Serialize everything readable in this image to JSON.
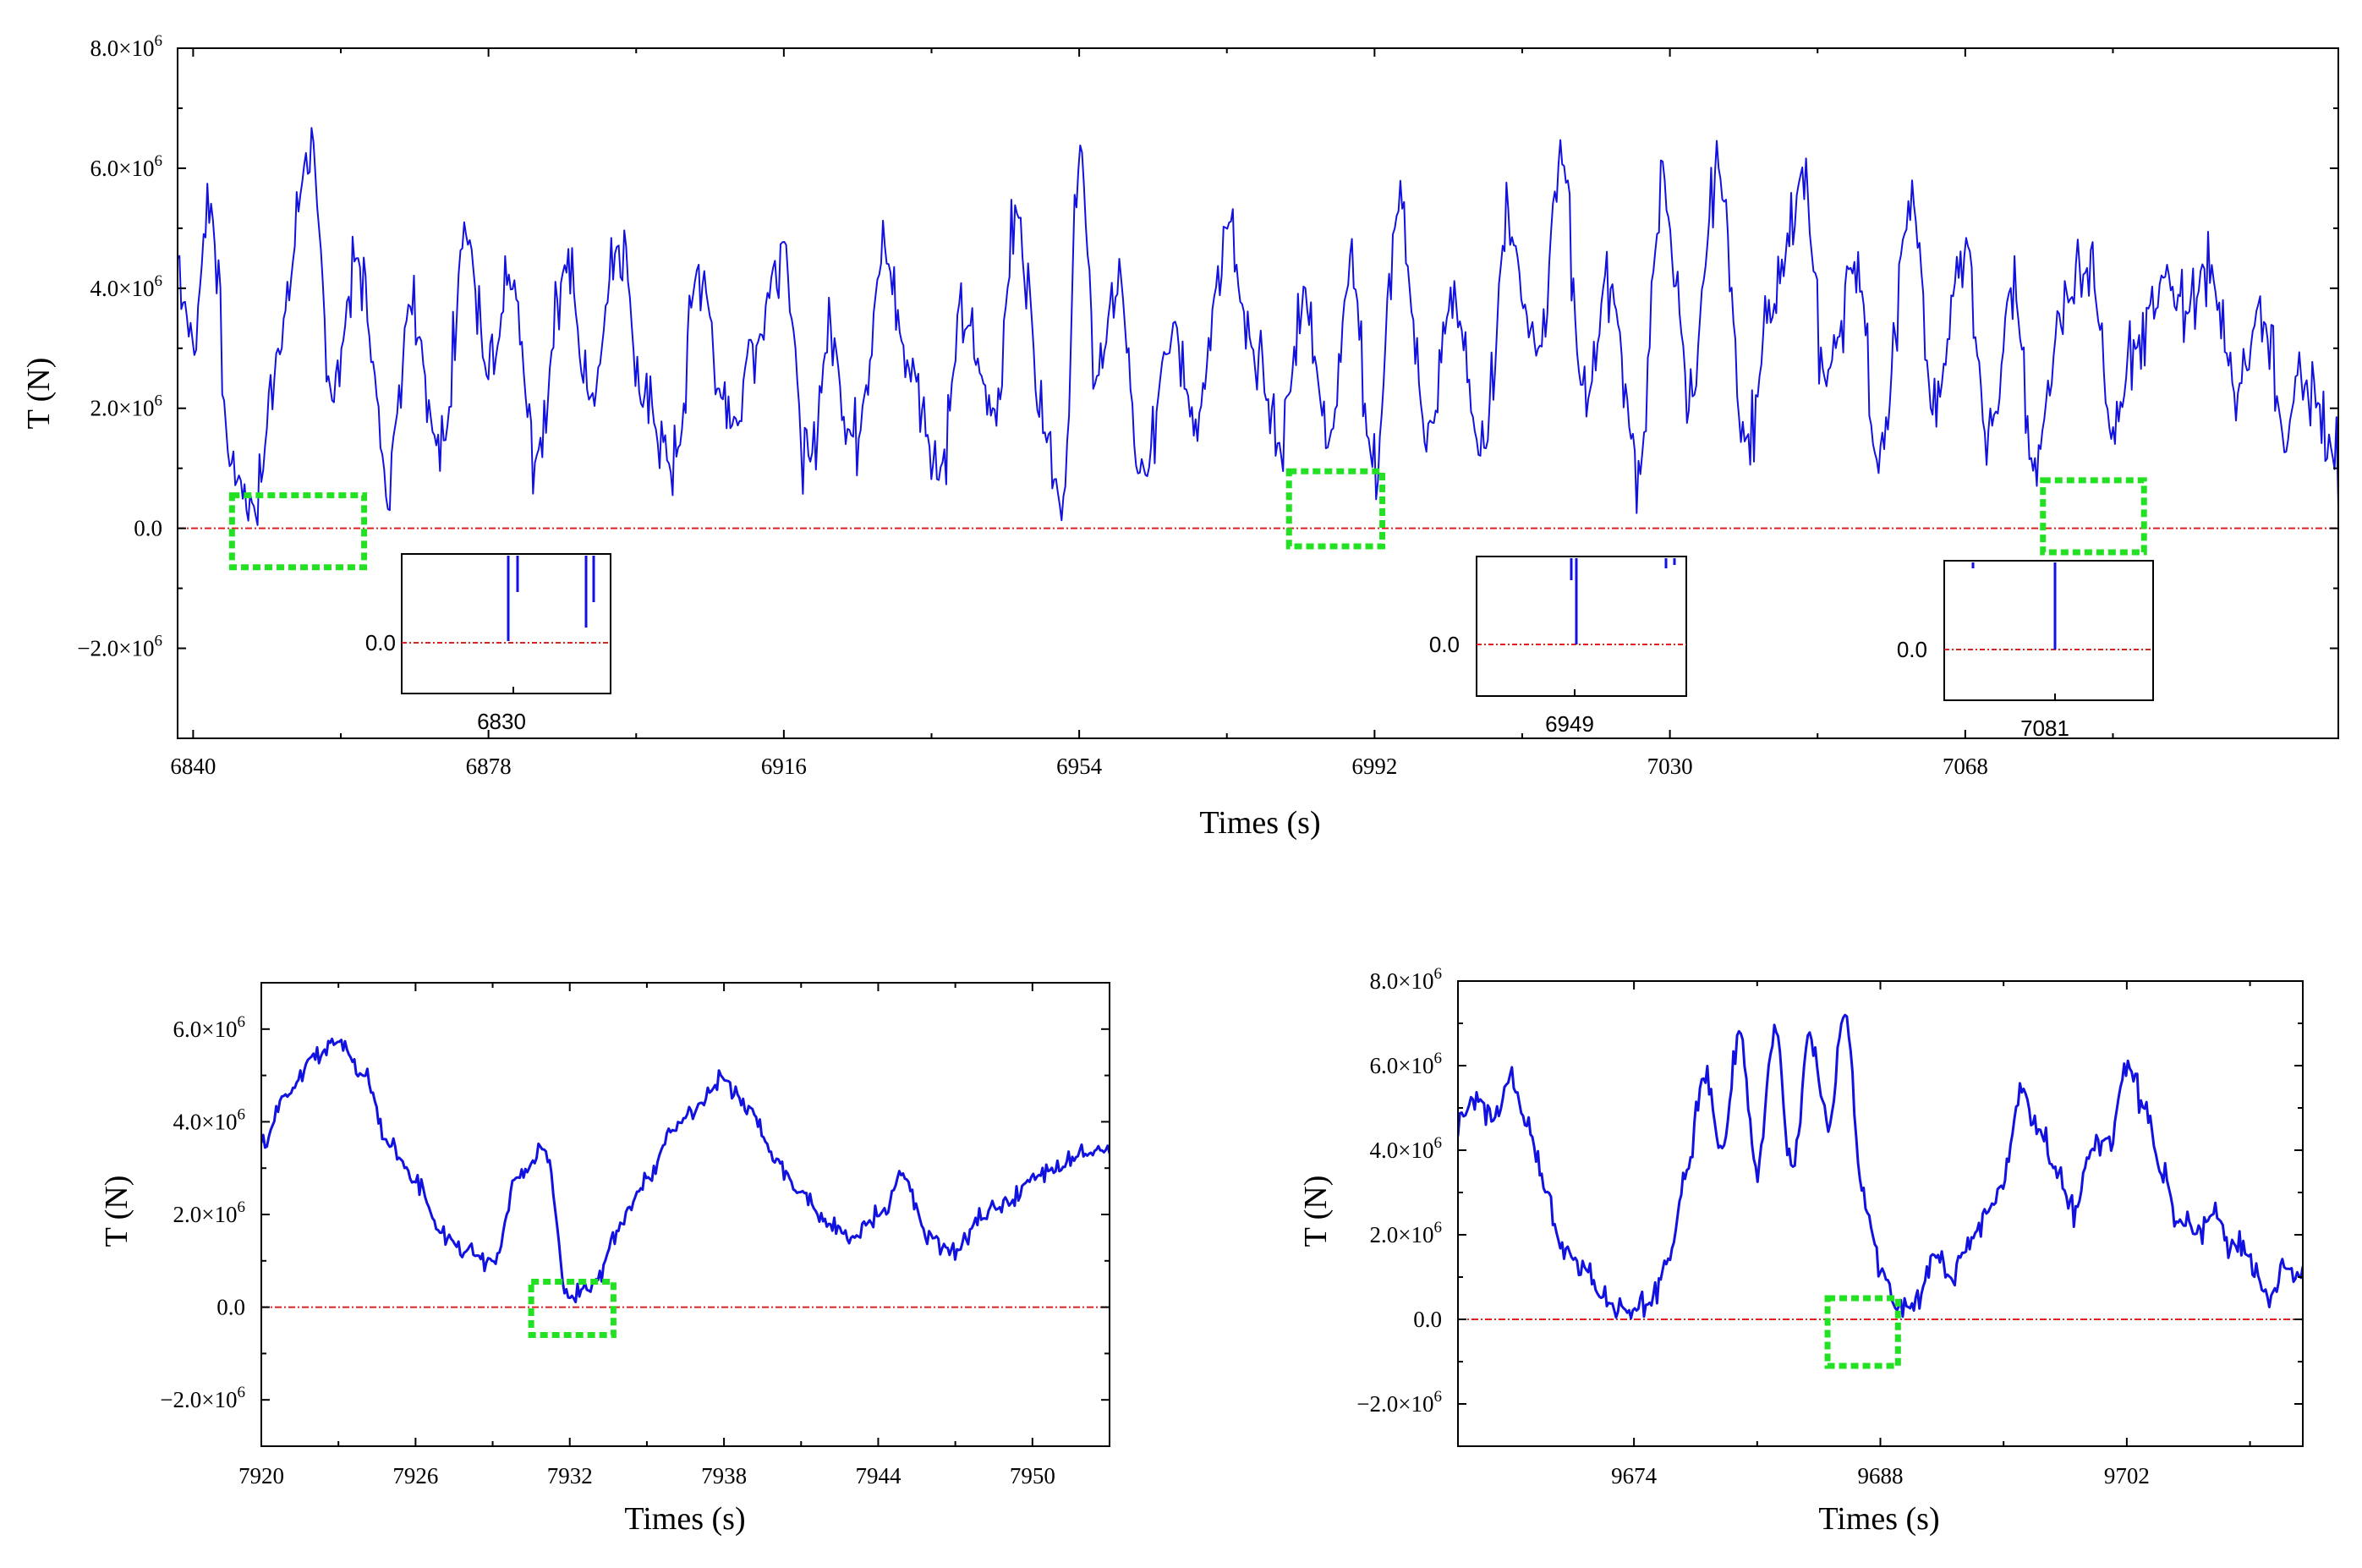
{
  "chart_data": [
    {
      "id": "top",
      "type": "line",
      "xlabel": "Times (s)",
      "ylabel": "T (N)",
      "xlim": [
        6838,
        7116
      ],
      "ylim": [
        -3500000.0,
        8000000.0
      ],
      "xticks": [
        6840,
        6878,
        6916,
        6954,
        6992,
        7030,
        7068
      ],
      "xtick_labels": [
        "6840",
        "6878",
        "6916",
        "6954",
        "6992",
        "7030",
        "7068"
      ],
      "yticks": [
        -2000000.0,
        0,
        2000000.0,
        4000000.0,
        6000000.0,
        8000000.0
      ],
      "ytick_labels": [
        {
          "mant": "−2.0×10",
          "exp": "6"
        },
        {
          "mant": "0.0",
          "exp": ""
        },
        {
          "mant": "2.0×10",
          "exp": "6"
        },
        {
          "mant": "4.0×10",
          "exp": "6"
        },
        {
          "mant": "6.0×10",
          "exp": "6"
        },
        {
          "mant": "8.0×10",
          "exp": "6"
        }
      ],
      "reference_line": {
        "y": 0,
        "color": "#e02020"
      },
      "series_color": "#1212e0",
      "series": [
        {
          "x": [
            6838,
            6840,
            6842,
            6845,
            6848,
            6851,
            6855,
            6858,
            6861,
            6865,
            6868,
            6872,
            6875,
            6878,
            6881,
            6884,
            6888,
            6891,
            6895,
            6898,
            6902,
            6905,
            6909,
            6912,
            6916,
            6919,
            6922,
            6925,
            6929,
            6932,
            6936,
            6939,
            6943,
            6946,
            6950,
            6952,
            6954,
            6956,
            6959,
            6962,
            6966,
            6969,
            6973,
            6976,
            6980,
            6983,
            6986,
            6989,
            6992,
            6995,
            6999,
            7002,
            7006,
            7009,
            7013,
            7016,
            7019,
            7022,
            7026,
            7029,
            7033,
            7036,
            7040,
            7043,
            7047,
            7050,
            7054,
            7057,
            7061,
            7064,
            7068,
            7071,
            7074,
            7077,
            7080,
            7084,
            7087,
            7090,
            7093,
            7096,
            7099,
            7103,
            7106,
            7109,
            7112,
            7116
          ],
          "y": [
            4500000.0,
            3000000.0,
            5500000.0,
            1000000.0,
            400000.0,
            3000000.0,
            6300000.0,
            2200000.0,
            4500000.0,
            1000000.0,
            3800000.0,
            1200000.0,
            5000000.0,
            2500000.0,
            4000000.0,
            1200000.0,
            4400000.0,
            2200000.0,
            4800000.0,
            2000000.0,
            1000000.0,
            4300000.0,
            1700000.0,
            3000000.0,
            4800000.0,
            1000000.0,
            3200000.0,
            1500000.0,
            4500000.0,
            2800000.0,
            1000000.0,
            3400000.0,
            2000000.0,
            5200000.0,
            1500000.0,
            200000.0,
            6600000.0,
            2500000.0,
            4200000.0,
            600000.0,
            3500000.0,
            1800000.0,
            5000000.0,
            3000000.0,
            1400000.0,
            4000000.0,
            1500000.0,
            4300000.0,
            1000000.0,
            5200000.0,
            1500000.0,
            3800000.0,
            1200000.0,
            5000000.0,
            3000000.0,
            6200000.0,
            2000000.0,
            4200000.0,
            1000000.0,
            5500000.0,
            2200000.0,
            6000000.0,
            1500000.0,
            3500000.0,
            5800000.0,
            2500000.0,
            4500000.0,
            1000000.0,
            5500000.0,
            2000000.0,
            4800000.0,
            1600000.0,
            4000000.0,
            900000.0,
            3600000.0,
            4300000.0,
            1500000.0,
            3000000.0,
            4200000.0,
            3500000.0,
            4400000.0,
            2400000.0,
            3600000.0,
            1800000.0,
            2400000.0,
            1200000.0
          ]
        }
      ],
      "highlight_boxes": [
        {
          "x0": 6845,
          "x1": 6862,
          "y0": -650000.0,
          "y1": 550000.0
        },
        {
          "x0": 6981,
          "x1": 6993,
          "y0": -300000.0,
          "y1": 950000.0
        },
        {
          "x0": 7078,
          "x1": 7091,
          "y0": -400000.0,
          "y1": 800000.0
        }
      ],
      "insets": [
        {
          "label": "6830",
          "zero_label": "0.0"
        },
        {
          "label": "6949",
          "zero_label": "0.0"
        },
        {
          "label": "7081",
          "zero_label": "0.0"
        }
      ]
    },
    {
      "id": "bottom-left",
      "type": "line",
      "xlabel": "Times (s)",
      "ylabel": "T (N)",
      "xlim": [
        7920,
        7953
      ],
      "ylim": [
        -3000000.0,
        7000000.0
      ],
      "xticks": [
        7920,
        7926,
        7932,
        7938,
        7944,
        7950
      ],
      "xtick_labels": [
        "7920",
        "7926",
        "7932",
        "7938",
        "7944",
        "7950"
      ],
      "yticks": [
        -2000000.0,
        0,
        2000000.0,
        4000000.0,
        6000000.0
      ],
      "ytick_labels": [
        {
          "mant": "−2.0×10",
          "exp": "6"
        },
        {
          "mant": "0.0",
          "exp": ""
        },
        {
          "mant": "2.0×10",
          "exp": "6"
        },
        {
          "mant": "4.0×10",
          "exp": "6"
        },
        {
          "mant": "6.0×10",
          "exp": "6"
        }
      ],
      "reference_line": {
        "y": 0,
        "color": "#e02020"
      },
      "series_color": "#1212e0",
      "series": [
        {
          "x": [
            7920,
            7921,
            7922,
            7923,
            7924,
            7925,
            7926,
            7927,
            7928,
            7929,
            7930,
            7931,
            7932,
            7933,
            7934,
            7935,
            7936,
            7937,
            7938,
            7939,
            7940,
            7941,
            7942,
            7943,
            7944,
            7945,
            7946,
            7947,
            7948,
            7949,
            7950,
            7951,
            7952,
            7953
          ],
          "y": [
            3500000.0,
            4600000.0,
            5400000.0,
            5700000.0,
            5000000.0,
            3500000.0,
            2700000.0,
            1600000.0,
            1200000.0,
            1000000.0,
            2800000.0,
            3400000.0,
            200000.0,
            600000.0,
            1800000.0,
            2800000.0,
            3800000.0,
            4400000.0,
            4900000.0,
            4300000.0,
            3200000.0,
            2500000.0,
            1800000.0,
            1500000.0,
            2000000.0,
            2800000.0,
            1500000.0,
            1200000.0,
            1900000.0,
            2200000.0,
            2800000.0,
            3000000.0,
            3300000.0,
            3400000.0
          ]
        }
      ],
      "highlight_boxes": [
        {
          "x0": 7930.5,
          "x1": 7933.7,
          "y0": -600000.0,
          "y1": 550000.0
        }
      ]
    },
    {
      "id": "bottom-right",
      "type": "line",
      "xlabel": "Times (s)",
      "ylabel": "T (N)",
      "xlim": [
        9664,
        9712
      ],
      "ylim": [
        -3000000.0,
        8000000.0
      ],
      "xticks": [
        9674,
        9688,
        9702
      ],
      "xtick_labels": [
        "9674",
        "9688",
        "9702"
      ],
      "yticks": [
        -2000000.0,
        0,
        2000000.0,
        4000000.0,
        6000000.0,
        8000000.0
      ],
      "ytick_labels": [
        {
          "mant": "−2.0×10",
          "exp": "6"
        },
        {
          "mant": "0.0",
          "exp": ""
        },
        {
          "mant": "2.0×10",
          "exp": "6"
        },
        {
          "mant": "4.0×10",
          "exp": "6"
        },
        {
          "mant": "6.0×10",
          "exp": "6"
        },
        {
          "mant": "8.0×10",
          "exp": "6"
        }
      ],
      "reference_line": {
        "y": 0,
        "color": "#e02020"
      },
      "series_color": "#1212e0",
      "series": [
        {
          "x": [
            9664,
            9665,
            9666,
            9667,
            9668,
            9669,
            9670,
            9671,
            9672,
            9673,
            9674,
            9675,
            9676,
            9677,
            9678,
            9679,
            9680,
            9681,
            9682,
            9683,
            9684,
            9685,
            9686,
            9687,
            9688,
            9689,
            9690,
            9691,
            9692,
            9693,
            9694,
            9695,
            9696,
            9697,
            9698,
            9699,
            9700,
            9701,
            9702,
            9703,
            9704,
            9705,
            9706,
            9707,
            9708,
            9709,
            9710,
            9711,
            9712
          ],
          "y": [
            4500000.0,
            5300000.0,
            4700000.0,
            5700000.0,
            4500000.0,
            3000000.0,
            1600000.0,
            1300000.0,
            600000.0,
            300000.0,
            200000.0,
            400000.0,
            1500000.0,
            3500000.0,
            5800000.0,
            4000000.0,
            6800000.0,
            3500000.0,
            7000000.0,
            3600000.0,
            6800000.0,
            4500000.0,
            7200000.0,
            3000000.0,
            1200000.0,
            200000.0,
            300000.0,
            1500000.0,
            1000000.0,
            1800000.0,
            2500000.0,
            3200000.0,
            5500000.0,
            4500000.0,
            3500000.0,
            2500000.0,
            4000000.0,
            4300000.0,
            6000000.0,
            5000000.0,
            3500000.0,
            2300000.0,
            2000000.0,
            2500000.0,
            1800000.0,
            1500000.0,
            500000.0,
            1200000.0,
            1000000.0
          ]
        }
      ],
      "highlight_boxes": [
        {
          "x0": 9685,
          "x1": 9689,
          "y0": -1100000.0,
          "y1": 500000.0
        }
      ]
    }
  ]
}
